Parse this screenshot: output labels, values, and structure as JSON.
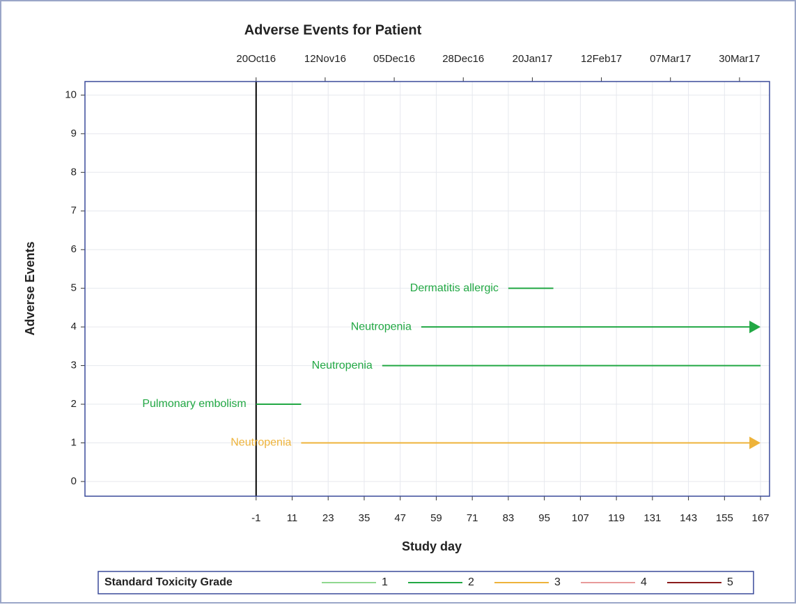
{
  "chart_data": {
    "type": "timeline",
    "title": "Adverse Events for Patient",
    "xlabel": "Study day",
    "ylabel": "Adverse Events",
    "xlim": [
      -58,
      170
    ],
    "ylim": [
      -0.38,
      10.35
    ],
    "xticks": [
      -1,
      11,
      23,
      35,
      47,
      59,
      71,
      83,
      95,
      107,
      119,
      131,
      143,
      155,
      167
    ],
    "yticks": [
      0,
      1,
      2,
      3,
      4,
      5,
      6,
      7,
      8,
      9,
      10
    ],
    "x2ticks": [
      {
        "value": -1,
        "label": "20Oct16"
      },
      {
        "value": 22,
        "label": "12Nov16"
      },
      {
        "value": 45,
        "label": "05Dec16"
      },
      {
        "value": 68,
        "label": "28Dec16"
      },
      {
        "value": 91,
        "label": "20Jan17"
      },
      {
        "value": 114,
        "label": "12Feb17"
      },
      {
        "value": 137,
        "label": "07Mar17"
      },
      {
        "value": 160,
        "label": "30Mar17"
      }
    ],
    "refline": -1,
    "grid": true,
    "legend": {
      "title": "Standard Toxicity Grade",
      "position": "bottom"
    },
    "series": [
      {
        "name": "1",
        "color": "#8fd88f",
        "events": []
      },
      {
        "name": "2",
        "color": "#22a844",
        "events": [
          {
            "label": "Dermatitis allergic",
            "y": 5,
            "start": 83,
            "end": 98,
            "arrow": false
          },
          {
            "label": "Neutropenia",
            "y": 4,
            "start": 54,
            "end": 167,
            "arrow": true
          },
          {
            "label": "Neutropenia",
            "y": 3,
            "start": 41,
            "end": 167,
            "arrow": false
          },
          {
            "label": "Pulmonary embolism",
            "y": 2,
            "start": -1,
            "end": 14,
            "arrow": false
          }
        ]
      },
      {
        "name": "3",
        "color": "#eeb33a",
        "events": [
          {
            "label": "Neutropenia",
            "y": 1,
            "start": 14,
            "end": 167,
            "arrow": true
          }
        ]
      },
      {
        "name": "4",
        "color": "#e89a9a",
        "events": []
      },
      {
        "name": "5",
        "color": "#8b1c1c",
        "events": []
      }
    ]
  }
}
